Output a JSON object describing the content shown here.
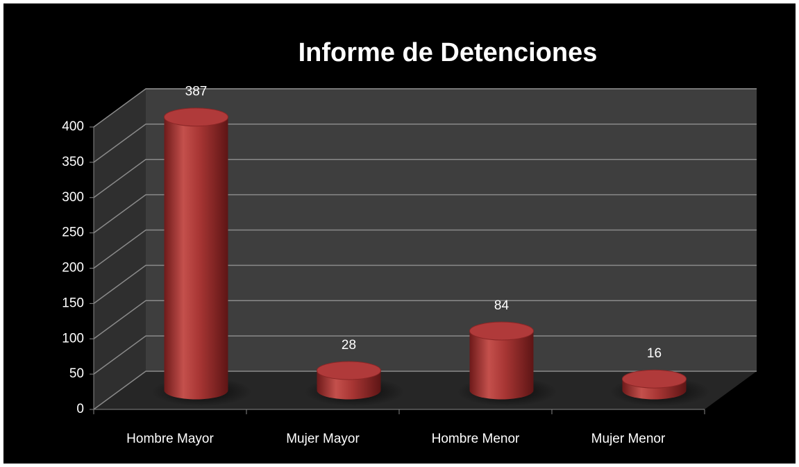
{
  "chart_data": {
    "type": "bar3d",
    "title": "Informe de Detenciones",
    "categories": [
      "Hombre Mayor",
      "Mujer Mayor",
      "Hombre Menor",
      "Mujer Menor"
    ],
    "values": [
      387,
      28,
      84,
      16
    ],
    "color": "#b03a3a",
    "ylim": [
      0,
      400
    ],
    "yticks": [
      0,
      50,
      100,
      150,
      200,
      250,
      300,
      350,
      400
    ],
    "grid": true
  }
}
